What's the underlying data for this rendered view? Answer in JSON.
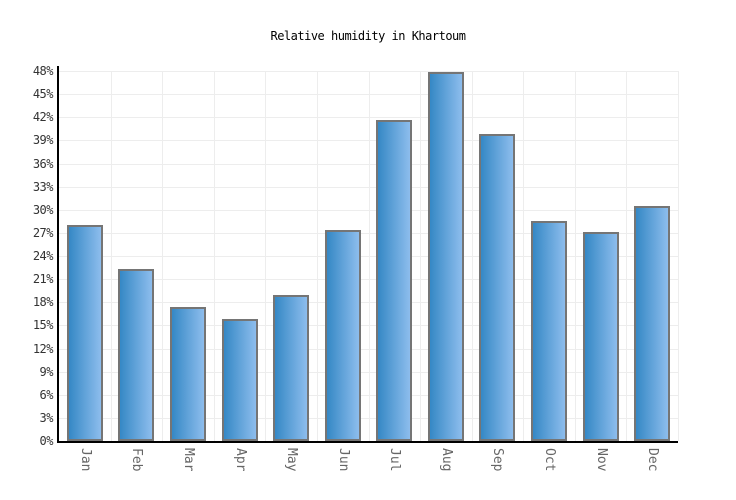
{
  "page": {
    "title": "Relative humidity in Khartoum"
  },
  "chart_data": {
    "type": "bar",
    "title": "Relative humidity in Khartoum",
    "categories": [
      "Jan",
      "Feb",
      "Mar",
      "Apr",
      "May",
      "Jun",
      "Jul",
      "Aug",
      "Sep",
      "Oct",
      "Nov",
      "Dec"
    ],
    "values": [
      28,
      22.3,
      17.4,
      15.8,
      19,
      27.4,
      41.7,
      47.9,
      39.8,
      28.6,
      27.1,
      30.5
    ],
    "series_name": "Relative humidity",
    "xlabel": "",
    "ylabel": "",
    "ylim": [
      0,
      48
    ],
    "ytick_step": 3,
    "ytick_suffix": "%",
    "grid": "on",
    "legend": "none",
    "colors": {
      "bar_gradient_left": "#3588c5",
      "bar_gradient_right": "#8dbded",
      "bar_border": "#757575",
      "axis": "#000000",
      "grid": "#ededed",
      "title_text": "#000000",
      "ytick_text": "#333333",
      "xtick_text": "#666666",
      "background": "#ffffff"
    }
  }
}
